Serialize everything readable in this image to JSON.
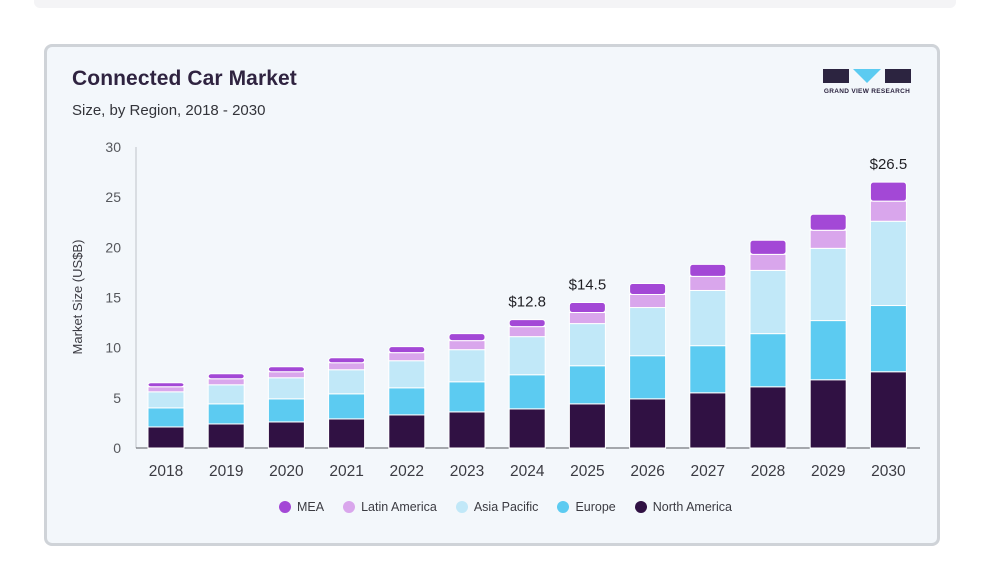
{
  "chart_data": {
    "type": "bar",
    "stacked": true,
    "title": "Connected Car Market",
    "subtitle": "Size, by Region, 2018 - 2030",
    "ylabel": "Market Size (US$B)",
    "xlabel": "",
    "ylim": [
      0,
      30
    ],
    "yticks": [
      0,
      5,
      10,
      15,
      20,
      25,
      30
    ],
    "grid": false,
    "legend_position": "bottom",
    "categories": [
      "2018",
      "2019",
      "2020",
      "2021",
      "2022",
      "2023",
      "2024",
      "2025",
      "2026",
      "2027",
      "2028",
      "2029",
      "2030"
    ],
    "series": [
      {
        "name": "North America",
        "color": "#301143",
        "values": [
          2.1,
          2.4,
          2.6,
          2.9,
          3.3,
          3.6,
          3.9,
          4.4,
          4.9,
          5.5,
          6.1,
          6.8,
          7.6
        ]
      },
      {
        "name": "Europe",
        "color": "#5ccbf1",
        "values": [
          1.9,
          2.0,
          2.3,
          2.5,
          2.7,
          3.0,
          3.4,
          3.8,
          4.3,
          4.7,
          5.3,
          5.9,
          6.6
        ]
      },
      {
        "name": "Asia Pacific",
        "color": "#c1e8f8",
        "values": [
          1.6,
          1.9,
          2.1,
          2.4,
          2.7,
          3.2,
          3.8,
          4.2,
          4.8,
          5.5,
          6.3,
          7.2,
          8.4
        ]
      },
      {
        "name": "Latin America",
        "color": "#d9a6ec",
        "values": [
          0.5,
          0.6,
          0.6,
          0.7,
          0.8,
          0.9,
          1.0,
          1.1,
          1.3,
          1.4,
          1.6,
          1.8,
          2.0
        ]
      },
      {
        "name": "MEA",
        "color": "#a348d6",
        "values": [
          0.4,
          0.5,
          0.5,
          0.5,
          0.6,
          0.7,
          0.7,
          1.0,
          1.1,
          1.2,
          1.4,
          1.6,
          1.9
        ]
      }
    ],
    "legend_order": [
      "MEA",
      "Latin America",
      "Asia Pacific",
      "Europe",
      "North America"
    ],
    "annotations": [
      {
        "category": "2024",
        "label": "$12.8",
        "value": 12.8
      },
      {
        "category": "2025",
        "label": "$14.5",
        "value": 14.5
      },
      {
        "category": "2030",
        "label": "$26.5",
        "value": 26.5
      }
    ]
  },
  "logo": {
    "text": "GRAND VIEW RESEARCH",
    "brand_color": "#2c2440",
    "accent_color": "#5ccbf1"
  }
}
